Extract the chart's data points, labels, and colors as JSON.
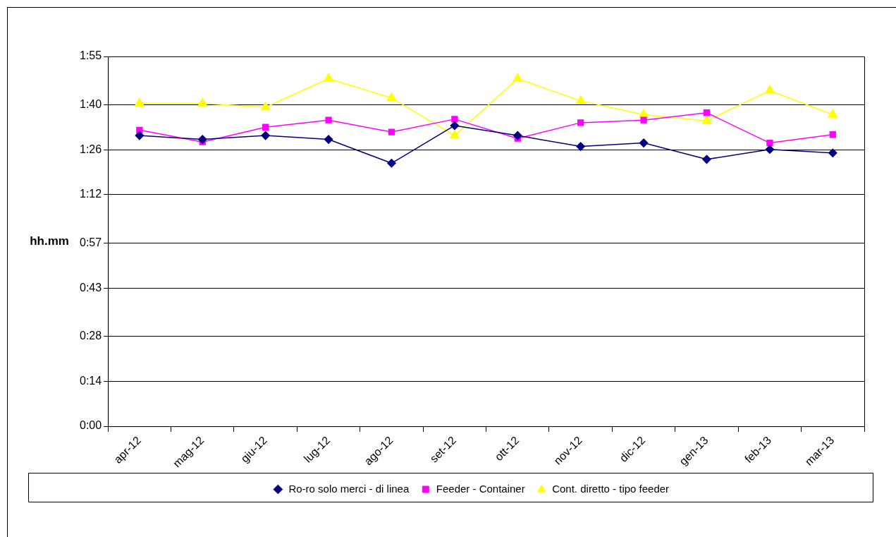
{
  "chart_data": {
    "type": "line",
    "ylabel": "hh.mm",
    "categories": [
      "apr-12",
      "mag-12",
      "giu-12",
      "lug-12",
      "ago-12",
      "set-12",
      "ott-12",
      "nov-12",
      "dic-12",
      "gen-13",
      "feb-13",
      "mar-13"
    ],
    "series": [
      {
        "name": "Ro-ro solo merci - di linea",
        "color": "#000080",
        "marker": "diamond",
        "values": [
          90.4,
          89.2,
          90.4,
          89.2,
          81.8,
          93.5,
          90.4,
          87.0,
          88.1,
          83.0,
          86.1,
          85.0
        ]
      },
      {
        "name": "Feeder - Container",
        "color": "#ff00ff",
        "marker": "square",
        "values": [
          92.1,
          88.4,
          93.0,
          95.2,
          91.5,
          95.5,
          89.5,
          94.4,
          95.2,
          97.5,
          88.1,
          90.7
        ]
      },
      {
        "name": "Cont. diretto - tipo feeder",
        "color": "#ffff00",
        "marker": "triangle",
        "values": [
          100.4,
          100.4,
          99.2,
          108.1,
          102.1,
          90.4,
          108.1,
          101.2,
          96.9,
          95.0,
          104.4,
          96.9
        ]
      }
    ],
    "ylim": [
      0,
      115
    ],
    "yticks": [
      {
        "value": 0,
        "label": "0:00"
      },
      {
        "value": 14,
        "label": "0:14"
      },
      {
        "value": 28,
        "label": "0:28"
      },
      {
        "value": 43,
        "label": "0:43"
      },
      {
        "value": 57,
        "label": "0:57"
      },
      {
        "value": 72,
        "label": "1:12"
      },
      {
        "value": 86,
        "label": "1:26"
      },
      {
        "value": 100,
        "label": "1:40"
      },
      {
        "value": 115,
        "label": "1:55"
      }
    ],
    "grid": "y",
    "legend": "bottom",
    "line_style": "solid"
  }
}
